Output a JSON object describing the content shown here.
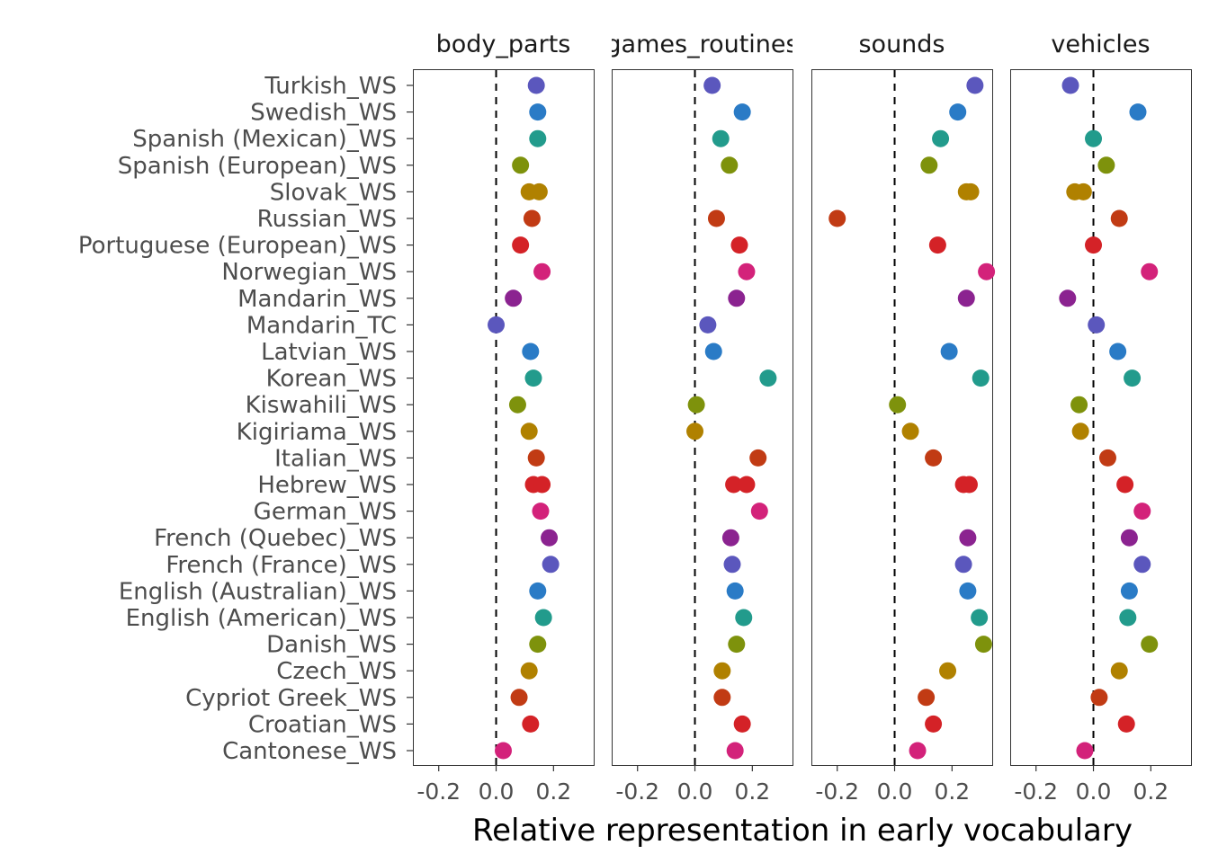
{
  "chart_data": {
    "type": "scatter",
    "facets": [
      "body_parts",
      "games_routines",
      "sounds",
      "vehicles"
    ],
    "xlabel": "Relative representation in early vocabulary",
    "ylabel": "",
    "xlim": [
      -0.29,
      0.34
    ],
    "xticks": [
      -0.2,
      0.0,
      0.2
    ],
    "xtick_labels": [
      "-0.2",
      "0.0",
      "0.2"
    ],
    "reference_line": {
      "x": 0,
      "style": "dashed"
    },
    "grid": false,
    "legend": "none",
    "languages": [
      {
        "name": "Turkish_WS",
        "color": "#5B57BD",
        "values": {
          "body_parts": [
            0.14
          ],
          "games_routines": [
            0.06
          ],
          "sounds": [
            0.28
          ],
          "vehicles": [
            -0.08
          ]
        }
      },
      {
        "name": "Swedish_WS",
        "color": "#2A7BC6",
        "values": {
          "body_parts": [
            0.145
          ],
          "games_routines": [
            0.165
          ],
          "sounds": [
            0.22
          ],
          "vehicles": [
            0.155
          ]
        }
      },
      {
        "name": "Spanish (Mexican)_WS",
        "color": "#229B8C",
        "values": {
          "body_parts": [
            0.145
          ],
          "games_routines": [
            0.09
          ],
          "sounds": [
            0.16
          ],
          "vehicles": [
            0.0
          ]
        }
      },
      {
        "name": "Spanish (European)_WS",
        "color": "#7E920C",
        "values": {
          "body_parts": [
            0.085
          ],
          "games_routines": [
            0.12
          ],
          "sounds": [
            0.12
          ],
          "vehicles": [
            0.045
          ]
        }
      },
      {
        "name": "Slovak_WS",
        "color": "#B08100",
        "values": {
          "body_parts": [
            0.115,
            0.15
          ],
          "games_routines": [],
          "sounds": [
            0.25,
            0.265
          ],
          "vehicles": [
            -0.065,
            -0.035
          ]
        }
      },
      {
        "name": "Russian_WS",
        "color": "#C13B14",
        "values": {
          "body_parts": [
            0.125
          ],
          "games_routines": [
            0.075
          ],
          "sounds": [
            -0.2
          ],
          "vehicles": [
            0.09
          ]
        }
      },
      {
        "name": "Portuguese (European)_WS",
        "color": "#D42227",
        "values": {
          "body_parts": [
            0.085
          ],
          "games_routines": [
            0.155
          ],
          "sounds": [
            0.15
          ],
          "vehicles": [
            0.0
          ]
        }
      },
      {
        "name": "Norwegian_WS",
        "color": "#D3227A",
        "values": {
          "body_parts": [
            0.16
          ],
          "games_routines": [
            0.18
          ],
          "sounds": [
            0.32
          ],
          "vehicles": [
            0.195
          ]
        }
      },
      {
        "name": "Mandarin_WS",
        "color": "#8B2390",
        "values": {
          "body_parts": [
            0.06
          ],
          "games_routines": [
            0.145
          ],
          "sounds": [
            0.25
          ],
          "vehicles": [
            -0.09
          ]
        }
      },
      {
        "name": "Mandarin_TC",
        "color": "#5B57BD",
        "values": {
          "body_parts": [
            0.0
          ],
          "games_routines": [
            0.045
          ],
          "sounds": [],
          "vehicles": [
            0.01
          ]
        }
      },
      {
        "name": "Latvian_WS",
        "color": "#2A7BC6",
        "values": {
          "body_parts": [
            0.12
          ],
          "games_routines": [
            0.065
          ],
          "sounds": [
            0.19
          ],
          "vehicles": [
            0.085
          ]
        }
      },
      {
        "name": "Korean_WS",
        "color": "#229B8C",
        "values": {
          "body_parts": [
            0.13
          ],
          "games_routines": [
            0.255
          ],
          "sounds": [
            0.3
          ],
          "vehicles": [
            0.135
          ]
        }
      },
      {
        "name": "Kiswahili_WS",
        "color": "#7E920C",
        "values": {
          "body_parts": [
            0.075
          ],
          "games_routines": [
            0.005
          ],
          "sounds": [
            0.01
          ],
          "vehicles": [
            -0.05
          ]
        }
      },
      {
        "name": "Kigiriama_WS",
        "color": "#B08100",
        "values": {
          "body_parts": [
            0.115
          ],
          "games_routines": [
            0.0
          ],
          "sounds": [
            0.055
          ],
          "vehicles": [
            -0.045
          ]
        }
      },
      {
        "name": "Italian_WS",
        "color": "#C13B14",
        "values": {
          "body_parts": [
            0.14
          ],
          "games_routines": [
            0.22
          ],
          "sounds": [
            0.135
          ],
          "vehicles": [
            0.05
          ]
        }
      },
      {
        "name": "Hebrew_WS",
        "color": "#D42227",
        "values": {
          "body_parts": [
            0.13,
            0.16
          ],
          "games_routines": [
            0.135,
            0.18
          ],
          "sounds": [
            0.24,
            0.26
          ],
          "vehicles": [
            0.11
          ]
        }
      },
      {
        "name": "German_WS",
        "color": "#D3227A",
        "values": {
          "body_parts": [
            0.155
          ],
          "games_routines": [
            0.225
          ],
          "sounds": [],
          "vehicles": [
            0.17
          ]
        }
      },
      {
        "name": "French (Quebec)_WS",
        "color": "#8B2390",
        "values": {
          "body_parts": [
            0.185
          ],
          "games_routines": [
            0.125
          ],
          "sounds": [
            0.255
          ],
          "vehicles": [
            0.125
          ]
        }
      },
      {
        "name": "French (France)_WS",
        "color": "#5B57BD",
        "values": {
          "body_parts": [
            0.19
          ],
          "games_routines": [
            0.13
          ],
          "sounds": [
            0.24
          ],
          "vehicles": [
            0.17
          ]
        }
      },
      {
        "name": "English (Australian)_WS",
        "color": "#2A7BC6",
        "values": {
          "body_parts": [
            0.145
          ],
          "games_routines": [
            0.14
          ],
          "sounds": [
            0.255
          ],
          "vehicles": [
            0.125
          ]
        }
      },
      {
        "name": "English (American)_WS",
        "color": "#229B8C",
        "values": {
          "body_parts": [
            0.165
          ],
          "games_routines": [
            0.17
          ],
          "sounds": [
            0.295
          ],
          "vehicles": [
            0.12
          ]
        }
      },
      {
        "name": "Danish_WS",
        "color": "#7E920C",
        "values": {
          "body_parts": [
            0.145
          ],
          "games_routines": [
            0.145
          ],
          "sounds": [
            0.31
          ],
          "vehicles": [
            0.195
          ]
        }
      },
      {
        "name": "Czech_WS",
        "color": "#B08100",
        "values": {
          "body_parts": [
            0.115
          ],
          "games_routines": [
            0.095
          ],
          "sounds": [
            0.185
          ],
          "vehicles": [
            0.09
          ]
        }
      },
      {
        "name": "Cypriot Greek_WS",
        "color": "#C13B14",
        "values": {
          "body_parts": [
            0.08
          ],
          "games_routines": [
            0.095
          ],
          "sounds": [
            0.11
          ],
          "vehicles": [
            0.02
          ]
        }
      },
      {
        "name": "Croatian_WS",
        "color": "#D42227",
        "values": {
          "body_parts": [
            0.12
          ],
          "games_routines": [
            0.165
          ],
          "sounds": [
            0.135
          ],
          "vehicles": [
            0.115
          ]
        }
      },
      {
        "name": "Cantonese_WS",
        "color": "#D3227A",
        "values": {
          "body_parts": [
            0.025
          ],
          "games_routines": [
            0.14
          ],
          "sounds": [
            0.08
          ],
          "vehicles": [
            -0.03
          ]
        }
      }
    ]
  }
}
